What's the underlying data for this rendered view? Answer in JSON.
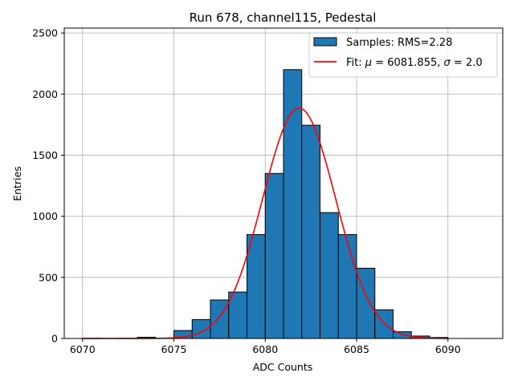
{
  "chart_data": {
    "type": "bar",
    "title": "Run 678, channel115, Pedestal",
    "xlabel": "ADC Counts",
    "ylabel": "Entries",
    "xlim": [
      6069,
      6093
    ],
    "ylim": [
      0,
      2540
    ],
    "grid": true,
    "xticks": [
      6070,
      6075,
      6080,
      6085,
      6090
    ],
    "xtick_labels": [
      "6070",
      "6075",
      "6080",
      "6085",
      "6090"
    ],
    "yticks": [
      0,
      500,
      1000,
      1500,
      2000,
      2500
    ],
    "ytick_labels": [
      "0",
      "500",
      "1000",
      "1500",
      "2000",
      "2500"
    ],
    "bin_width": 1,
    "histogram": {
      "name": "Samples: RMS=2.28",
      "bin_lefts": [
        6070,
        6071,
        6072,
        6073,
        6074,
        6075,
        6076,
        6077,
        6078,
        6079,
        6080,
        6081,
        6082,
        6083,
        6084,
        6085,
        6086,
        6087,
        6088,
        6089
      ],
      "values": [
        2,
        1,
        2,
        10,
        3,
        65,
        155,
        315,
        380,
        850,
        1350,
        2200,
        1745,
        1030,
        850,
        575,
        235,
        55,
        20,
        8
      ],
      "color": "#1f77b4",
      "edge_color": "#000000"
    },
    "fit": {
      "name_prefix": "Fit: ",
      "mu_value": "6081.855",
      "sigma_value": "2.0",
      "mu": 6081.855,
      "sigma": 2.0,
      "amplitude": 1885,
      "x_range": [
        6070,
        6090
      ],
      "color": "#ff0000"
    },
    "legend_position": "upper right"
  }
}
